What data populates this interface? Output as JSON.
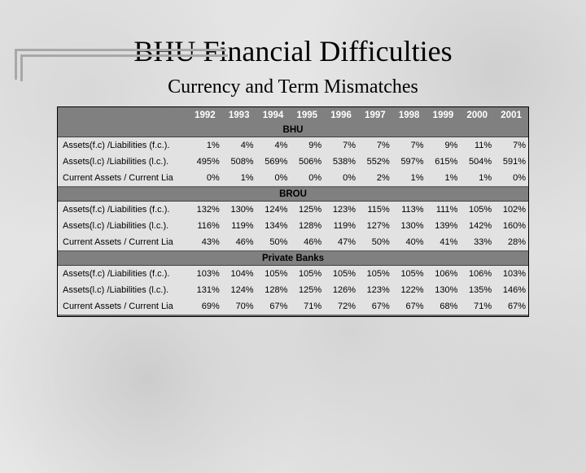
{
  "title": "BHU Financial Difficulties",
  "subtitle": "Currency and Term Mismatches",
  "years": [
    "1992",
    "1993",
    "1994",
    "1995",
    "1996",
    "1997",
    "1998",
    "1999",
    "2000",
    "2001"
  ],
  "row_labels": [
    "Assets(f.c) /Liabilities (f.c.).",
    "Assets(l.c) /Liabilities (l.c.).",
    "Current Assets / Current Lia"
  ],
  "sections": [
    {
      "name": "BHU",
      "rows": [
        [
          "1%",
          "4%",
          "4%",
          "9%",
          "7%",
          "7%",
          "7%",
          "9%",
          "11%",
          "7%"
        ],
        [
          "495%",
          "508%",
          "569%",
          "506%",
          "538%",
          "552%",
          "597%",
          "615%",
          "504%",
          "591%"
        ],
        [
          "0%",
          "1%",
          "0%",
          "0%",
          "0%",
          "2%",
          "1%",
          "1%",
          "1%",
          "0%"
        ]
      ]
    },
    {
      "name": "BROU",
      "rows": [
        [
          "132%",
          "130%",
          "124%",
          "125%",
          "123%",
          "115%",
          "113%",
          "111%",
          "105%",
          "102%"
        ],
        [
          "116%",
          "119%",
          "134%",
          "128%",
          "119%",
          "127%",
          "130%",
          "139%",
          "142%",
          "160%"
        ],
        [
          "43%",
          "46%",
          "50%",
          "46%",
          "47%",
          "50%",
          "40%",
          "41%",
          "33%",
          "28%"
        ]
      ]
    },
    {
      "name": "Private Banks",
      "rows": [
        [
          "103%",
          "104%",
          "105%",
          "105%",
          "105%",
          "105%",
          "105%",
          "106%",
          "106%",
          "103%"
        ],
        [
          "131%",
          "124%",
          "128%",
          "125%",
          "126%",
          "123%",
          "122%",
          "130%",
          "135%",
          "146%"
        ],
        [
          "69%",
          "70%",
          "67%",
          "71%",
          "72%",
          "67%",
          "67%",
          "68%",
          "71%",
          "67%"
        ]
      ]
    }
  ],
  "colors": {
    "header_bg": "#808080",
    "header_text": "#ffffff",
    "section_text": "#000000",
    "body_bg": "#e2e2e2",
    "row_text": "#000000",
    "border": "#000000"
  },
  "typography": {
    "title_fontsize_pt": 28,
    "subtitle_fontsize_pt": 18,
    "table_fontsize_pt": 8.5,
    "title_family": "Times New Roman",
    "table_family": "Arial"
  }
}
